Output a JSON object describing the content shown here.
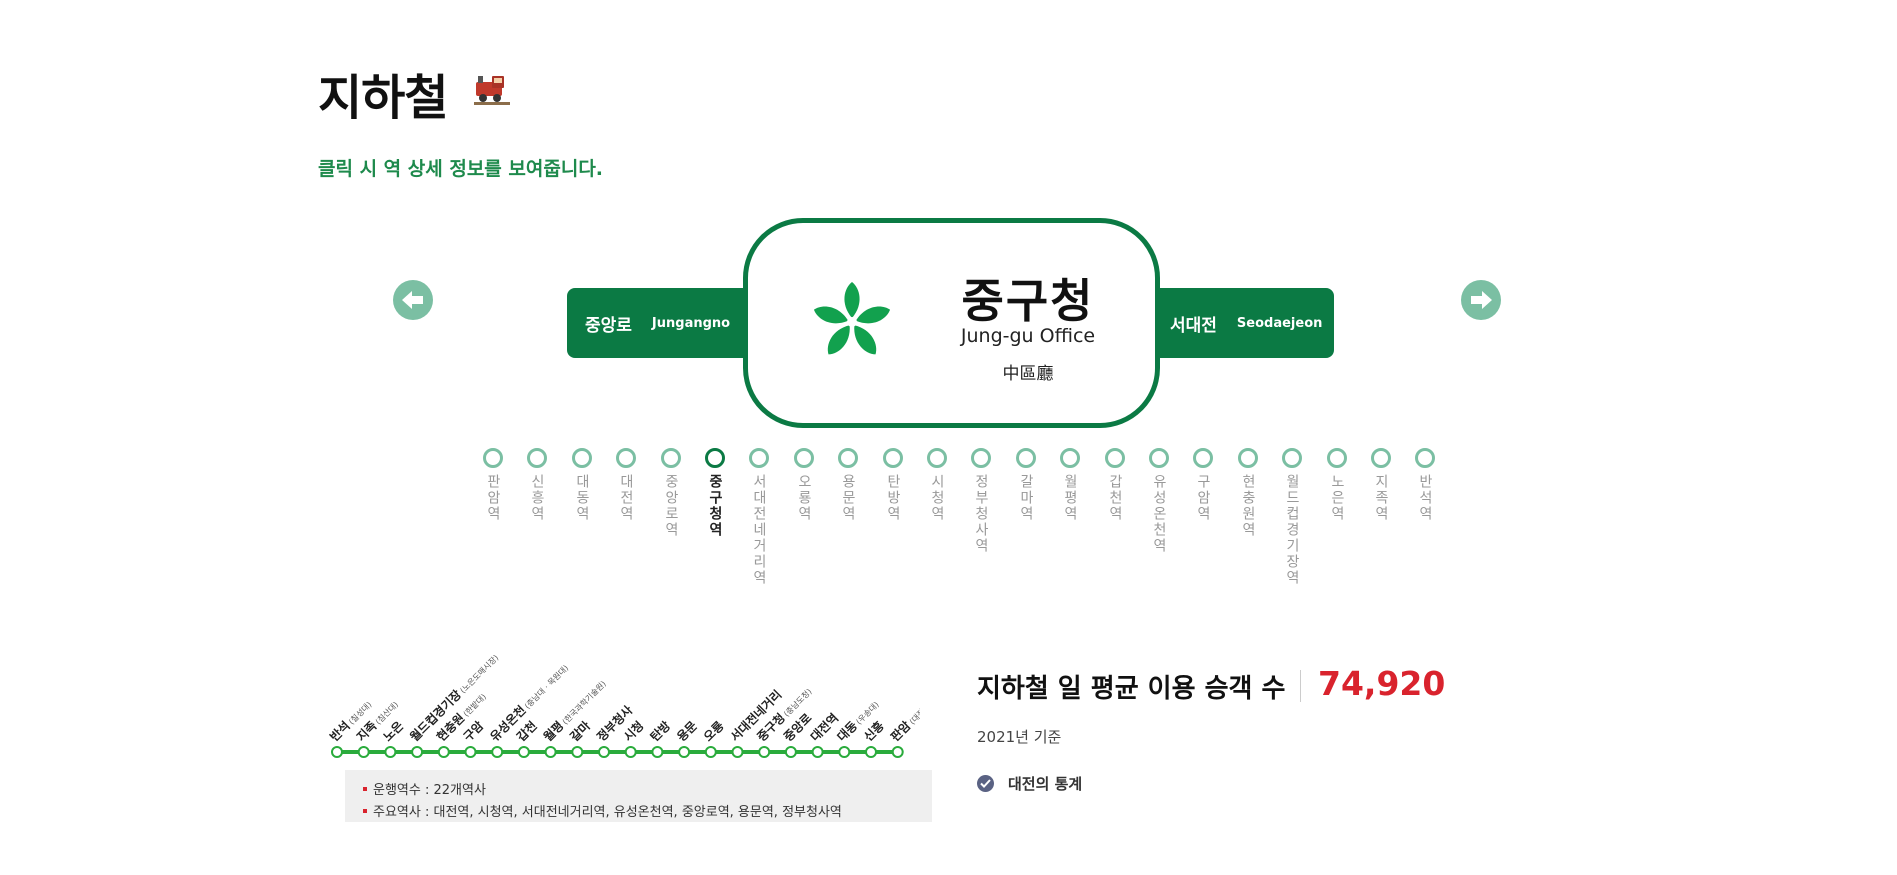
{
  "header": {
    "title": "지하철",
    "subtitle": "클릭 시 역 상세 정보를 보여줍니다.",
    "title_icon": "train-icon"
  },
  "sign": {
    "prev": {
      "ko": "중앙로",
      "en": "Jungangno"
    },
    "current": {
      "ko": "중구청",
      "en": "Jung-gu Office",
      "hanja": "中區廳",
      "emblem": "jung-gu-emblem"
    },
    "next": {
      "ko": "서대전",
      "en": "Seodaejeon"
    },
    "prev_button_icon": "arrow-left-icon",
    "next_button_icon": "arrow-right-icon"
  },
  "stations": [
    {
      "name": "판암역",
      "active": false
    },
    {
      "name": "신흥역",
      "active": false
    },
    {
      "name": "대동역",
      "active": false
    },
    {
      "name": "대전역",
      "active": false
    },
    {
      "name": "중앙로역",
      "active": false
    },
    {
      "name": "중구청역",
      "active": true
    },
    {
      "name": "서대전네거리역",
      "active": false
    },
    {
      "name": "오룡역",
      "active": false
    },
    {
      "name": "용문역",
      "active": false
    },
    {
      "name": "탄방역",
      "active": false
    },
    {
      "name": "시청역",
      "active": false
    },
    {
      "name": "정부청사역",
      "active": false
    },
    {
      "name": "갈마역",
      "active": false
    },
    {
      "name": "월평역",
      "active": false
    },
    {
      "name": "갑천역",
      "active": false
    },
    {
      "name": "유성온천역",
      "active": false
    },
    {
      "name": "구암역",
      "active": false
    },
    {
      "name": "현충원역",
      "active": false
    },
    {
      "name": "월드컵경기장역",
      "active": false
    },
    {
      "name": "노은역",
      "active": false
    },
    {
      "name": "지족역",
      "active": false
    },
    {
      "name": "반석역",
      "active": false
    }
  ],
  "line_map": {
    "line_color": "#2aab3c",
    "stations": [
      {
        "name": "반석",
        "sub": "(칠성대)"
      },
      {
        "name": "지족",
        "sub": "(침산대)"
      },
      {
        "name": "노은",
        "sub": ""
      },
      {
        "name": "월드컵경기장",
        "sub": "(노은도매시장)"
      },
      {
        "name": "현충원",
        "sub": "(한밭대)"
      },
      {
        "name": "구암",
        "sub": ""
      },
      {
        "name": "유성온천",
        "sub": "(충남대 · 목원대)"
      },
      {
        "name": "갑천",
        "sub": ""
      },
      {
        "name": "월평",
        "sub": "(한국과학기술원)"
      },
      {
        "name": "갈마",
        "sub": ""
      },
      {
        "name": "정부청사",
        "sub": ""
      },
      {
        "name": "시청",
        "sub": ""
      },
      {
        "name": "탄방",
        "sub": ""
      },
      {
        "name": "용문",
        "sub": ""
      },
      {
        "name": "오룡",
        "sub": ""
      },
      {
        "name": "서대전네거리",
        "sub": ""
      },
      {
        "name": "중구청",
        "sub": "(충남도청)"
      },
      {
        "name": "중앙로",
        "sub": ""
      },
      {
        "name": "대전역",
        "sub": ""
      },
      {
        "name": "대동",
        "sub": "(우송대)"
      },
      {
        "name": "신흥",
        "sub": ""
      },
      {
        "name": "판암",
        "sub": "(대전대)"
      }
    ]
  },
  "info": {
    "count_label": "운행역수 : 22개역사",
    "major_label": "주요역사 : 대전역, 시청역, 서대전네거리역, 유성온천역, 중앙로역, 용문역, 정부청사역"
  },
  "ridership": {
    "label": "지하철 일 평균 이용 승객 수",
    "value": "74,920",
    "year_note": "2021년 기준",
    "stats_link": "대전의 통계"
  },
  "colors": {
    "brand_green": "#0b7a44",
    "accent_green": "#1e8a4c",
    "dot_inactive": "#7bbfa3",
    "value_red": "#d9232d"
  }
}
